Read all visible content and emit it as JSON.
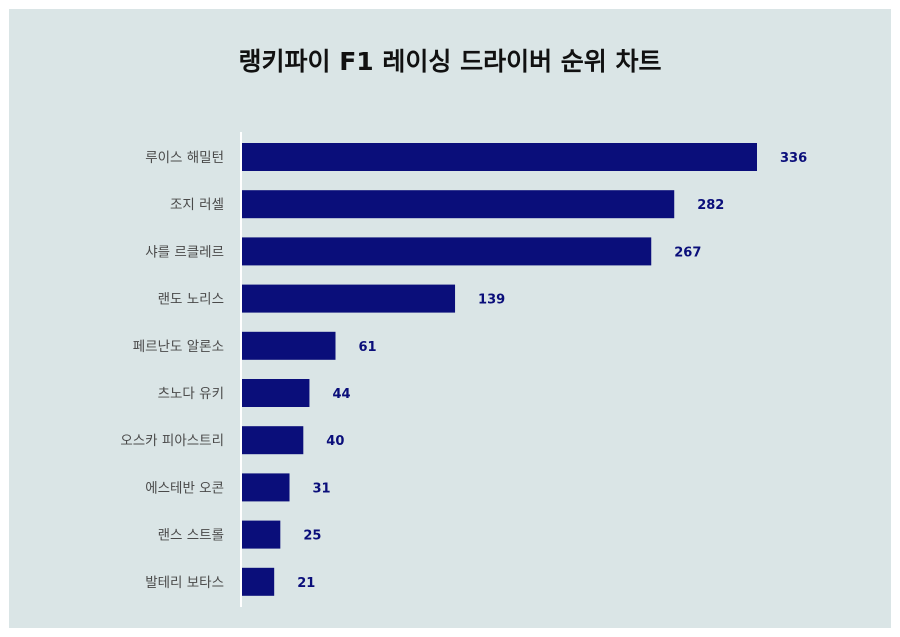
{
  "chart_data": {
    "type": "bar",
    "orientation": "horizontal",
    "title": "랭키파이 F1 레이싱 드라이버 순위 차트",
    "categories": [
      "루이스 해밀턴",
      "조지 러셀",
      "샤를 르클레르",
      "랜도 노리스",
      "페르난도 알론소",
      "츠노다 유키",
      "오스카 피아스트리",
      "에스테반 오콘",
      "랜스 스트롤",
      "발테리 보타스"
    ],
    "values": [
      336,
      282,
      267,
      139,
      61,
      44,
      40,
      31,
      25,
      21
    ],
    "xlim": [
      0,
      336
    ],
    "grid": false,
    "legend": "none",
    "colors": {
      "bar": "#0a0e7a",
      "value_label": "#0a0e7a",
      "background": "#dae5e6",
      "axis": "#ffffff"
    }
  }
}
